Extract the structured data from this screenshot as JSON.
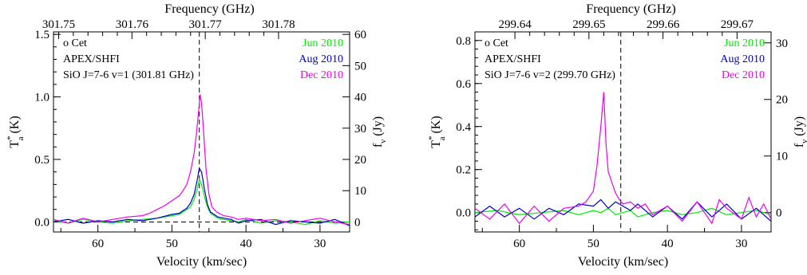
{
  "figure": {
    "panels_count": 2
  },
  "chart_data": [
    {
      "type": "line",
      "object_label": "o Cet",
      "instrument_label": "APEX/SHFI",
      "line_label": "SiO J=7-6 v=1 (301.81 GHz)",
      "xlabel": "Velocity (km/sec)",
      "ylabel": "T",
      "ylabel_sup": "*",
      "ylabel_sub": "a",
      "ylabel_unit": " (K)",
      "x2label": "Frequency (GHz)",
      "y2label": "f",
      "y2label_sub": "ν",
      "y2label_unit": " (Jy)",
      "xlim": [
        66,
        26
      ],
      "ylim": [
        -0.08,
        1.52
      ],
      "x_ticks": [
        60,
        50,
        40,
        30
      ],
      "x_tick_labels": [
        "60",
        "50",
        "40",
        "30"
      ],
      "y_ticks": [
        0.0,
        0.5,
        1.0,
        1.5
      ],
      "y_tick_labels": [
        "0.0",
        "0.5",
        "1.0",
        "1.5"
      ],
      "freq_ticks": [
        {
          "label": "301.75",
          "v": 65.3
        },
        {
          "label": "301.76",
          "v": 55.4
        },
        {
          "label": "301.77",
          "v": 45.5
        },
        {
          "label": "301.78",
          "v": 35.6
        }
      ],
      "flux_ticks": [
        {
          "label": "0",
          "y": 0.0
        },
        {
          "label": "10",
          "y": 0.25
        },
        {
          "label": "20",
          "y": 0.5
        },
        {
          "label": "30",
          "y": 0.75
        },
        {
          "label": "40",
          "y": 1.0
        },
        {
          "label": "50",
          "y": 1.25
        },
        {
          "label": "60",
          "y": 1.5
        }
      ],
      "vline_x": 46.3,
      "hline_y": 0.0,
      "series": [
        {
          "name": "Jun 2010",
          "color": "#00ee00",
          "x": [
            66,
            64,
            62,
            60,
            58,
            56,
            54,
            52,
            50,
            49,
            48.5,
            48,
            47.5,
            47,
            46.6,
            46.3,
            46,
            45.6,
            45.2,
            44.8,
            44.3,
            43.8,
            43,
            42,
            41,
            40,
            38,
            36,
            34,
            32,
            30,
            28,
            26
          ],
          "y": [
            0.01,
            -0.01,
            0.02,
            0.0,
            -0.01,
            0.01,
            0.02,
            0.03,
            0.05,
            0.06,
            0.08,
            0.1,
            0.12,
            0.18,
            0.26,
            0.34,
            0.3,
            0.2,
            0.12,
            0.07,
            0.05,
            0.03,
            0.02,
            0.01,
            0.0,
            0.02,
            -0.01,
            0.01,
            0.0,
            -0.02,
            0.01,
            -0.01,
            0.0
          ]
        },
        {
          "name": "Aug 2010",
          "color": "#0000cc",
          "x": [
            66,
            64,
            62,
            60,
            58,
            56,
            54,
            52,
            50,
            49,
            48.5,
            48,
            47.5,
            47,
            46.6,
            46.3,
            46,
            45.6,
            45.2,
            44.8,
            44.3,
            43.8,
            43,
            42,
            41,
            40,
            38,
            36,
            34,
            32,
            30,
            28,
            26
          ],
          "y": [
            0.0,
            0.02,
            -0.01,
            0.01,
            0.0,
            0.02,
            0.01,
            0.03,
            0.06,
            0.07,
            0.09,
            0.11,
            0.15,
            0.22,
            0.33,
            0.43,
            0.4,
            0.26,
            0.14,
            0.08,
            0.06,
            0.04,
            0.03,
            0.02,
            -0.01,
            0.01,
            0.02,
            -0.02,
            0.01,
            0.0,
            -0.01,
            0.02,
            -0.03
          ]
        },
        {
          "name": "Dec 2010",
          "color": "#ee00ee",
          "x": [
            66,
            64,
            62,
            60,
            58,
            56,
            54,
            53,
            52,
            51,
            50,
            49.5,
            49,
            48.5,
            48,
            47.5,
            47,
            46.7,
            46.4,
            46.2,
            46,
            45.7,
            45.4,
            45,
            44.6,
            44,
            43,
            42,
            41,
            40,
            38,
            36,
            34,
            32,
            30,
            28,
            26
          ],
          "y": [
            0.02,
            -0.01,
            0.03,
            0.0,
            0.02,
            0.04,
            0.05,
            0.07,
            0.1,
            0.13,
            0.17,
            0.19,
            0.21,
            0.25,
            0.3,
            0.4,
            0.55,
            0.7,
            0.88,
            1.02,
            0.95,
            0.7,
            0.42,
            0.22,
            0.12,
            0.08,
            0.05,
            0.04,
            0.02,
            0.03,
            0.01,
            0.02,
            -0.01,
            0.01,
            0.03,
            0.0,
            -0.02
          ]
        }
      ]
    },
    {
      "type": "line",
      "object_label": "o Cet",
      "instrument_label": "APEX/SHFI",
      "line_label": "SiO J=7-6 v=2 (299.70 GHz)",
      "xlabel": "Velocity (km/sec)",
      "ylabel": "T",
      "ylabel_sup": "*",
      "ylabel_sub": "a",
      "ylabel_unit": " (K)",
      "x2label": "Frequency (GHz)",
      "y2label": "f",
      "y2label_sub": "ν",
      "y2label_unit": " (Jy)",
      "xlim": [
        66,
        26
      ],
      "ylim": [
        -0.09,
        0.84
      ],
      "x_ticks": [
        60,
        50,
        40,
        30
      ],
      "x_tick_labels": [
        "60",
        "50",
        "40",
        "30"
      ],
      "y_ticks": [
        0.0,
        0.2,
        0.4,
        0.6,
        0.8
      ],
      "y_tick_labels": [
        "0.0",
        "0.2",
        "0.4",
        "0.6",
        "0.8"
      ],
      "freq_ticks": [
        {
          "label": "299.64",
          "v": 60.6
        },
        {
          "label": "299.65",
          "v": 50.6
        },
        {
          "label": "299.66",
          "v": 40.6
        },
        {
          "label": "299.67",
          "v": 30.6
        }
      ],
      "flux_ticks": [
        {
          "label": "0",
          "y": 0.0
        },
        {
          "label": "10",
          "y": 0.263
        },
        {
          "label": "20",
          "y": 0.526
        },
        {
          "label": "30",
          "y": 0.789
        }
      ],
      "vline_x": 46.3,
      "hline_y": null,
      "series": [
        {
          "name": "Jun 2010",
          "color": "#00ee00",
          "x": [
            66,
            63,
            60,
            57,
            54,
            52,
            50,
            49,
            48,
            47,
            46,
            45,
            44,
            42,
            40,
            38,
            36,
            34,
            32,
            30,
            28,
            26
          ],
          "y": [
            0.0,
            0.01,
            -0.01,
            0.0,
            0.01,
            -0.01,
            0.01,
            0.0,
            0.02,
            -0.01,
            0.0,
            0.01,
            -0.02,
            0.0,
            0.01,
            -0.01,
            0.0,
            0.02,
            -0.01,
            0.0,
            0.01,
            -0.01
          ]
        },
        {
          "name": "Aug 2010",
          "color": "#0000cc",
          "x": [
            66,
            64,
            62,
            60,
            58,
            56,
            54,
            52,
            50,
            49,
            48,
            47,
            46,
            45,
            44,
            42,
            40,
            38,
            36,
            34,
            32,
            30,
            28,
            26
          ],
          "y": [
            -0.02,
            0.03,
            -0.02,
            0.02,
            -0.03,
            0.02,
            -0.01,
            0.04,
            0.03,
            0.06,
            0.02,
            0.05,
            0.03,
            0.01,
            0.04,
            -0.02,
            0.03,
            -0.03,
            0.05,
            -0.02,
            0.04,
            -0.03,
            0.02,
            -0.04
          ]
        },
        {
          "name": "Dec 2010",
          "color": "#ee00ee",
          "x": [
            66,
            64,
            62,
            60,
            58,
            56,
            54,
            52,
            51,
            50,
            49.5,
            49,
            48.6,
            48.3,
            48,
            47.5,
            47,
            46.5,
            46,
            45,
            44,
            43,
            42,
            40,
            38,
            36,
            34,
            33,
            32,
            30,
            29,
            28,
            27,
            26
          ],
          "y": [
            0.02,
            -0.03,
            0.04,
            -0.05,
            0.03,
            -0.04,
            0.02,
            0.03,
            0.05,
            0.1,
            0.22,
            0.4,
            0.56,
            0.32,
            0.19,
            0.14,
            0.09,
            0.06,
            0.04,
            0.05,
            0.02,
            0.04,
            -0.01,
            0.03,
            -0.04,
            0.05,
            -0.05,
            0.06,
            0.02,
            -0.03,
            0.07,
            -0.02,
            0.04,
            -0.03
          ]
        }
      ]
    }
  ]
}
